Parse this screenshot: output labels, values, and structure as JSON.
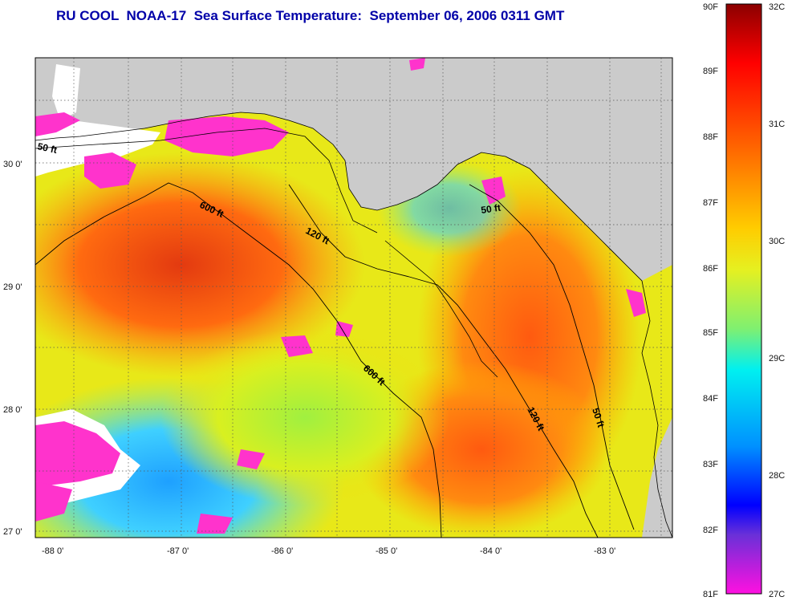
{
  "title": "RU COOL  NOAA-17  Sea Surface Temperature:  September 06, 2006 0311 GMT",
  "map": {
    "lon_ticks": [
      "-88 0'",
      "-87 0'",
      "-86 0'",
      "-85 0'",
      "-84 0'",
      "-83 0'"
    ],
    "lat_ticks": [
      "30 0'",
      "29 0'",
      "28 0'",
      "27 0'"
    ],
    "contour_labels": [
      "50 ft",
      "600 ft",
      "120 ft",
      "50 ft",
      "600 ft",
      "120 ft",
      "50 ft"
    ]
  },
  "colorbar": {
    "fahrenheit": [
      "90F",
      "89F",
      "88F",
      "87F",
      "86F",
      "85F",
      "84F",
      "83F",
      "82F",
      "81F"
    ],
    "celsius": [
      "32C",
      "31C",
      "30C",
      "29C",
      "28C",
      "27C"
    ]
  },
  "colors": {
    "land": "#cbcbcb",
    "cloud": "#ff33cc",
    "no_data": "#ffffff",
    "title": "#0000a8"
  }
}
